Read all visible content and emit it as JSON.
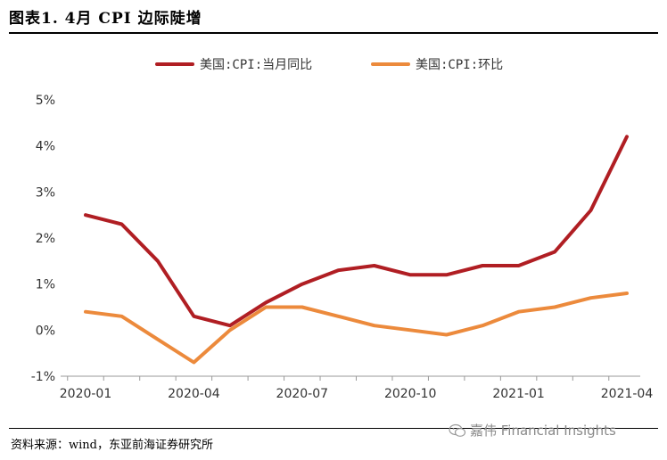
{
  "header": {
    "title": "图表1.   4月 CPI 边际陡增"
  },
  "footer": {
    "source": "资料来源：wind，东亚前海证券研究所",
    "watermark": "嘉伟 Financial Insights",
    "watermark_icon": "wechat-icon"
  },
  "chart_data": {
    "type": "line",
    "x": [
      "2020-01",
      "2020-02",
      "2020-03",
      "2020-04",
      "2020-05",
      "2020-06",
      "2020-07",
      "2020-08",
      "2020-09",
      "2020-10",
      "2020-11",
      "2020-12",
      "2021-01",
      "2021-02",
      "2021-03",
      "2021-04"
    ],
    "x_tick_labels": [
      "2020-01",
      "2020-04",
      "2020-07",
      "2020-10",
      "2021-01",
      "2021-04"
    ],
    "y_tick_labels": [
      "5%",
      "4%",
      "3%",
      "2%",
      "1%",
      "0%",
      "-1%"
    ],
    "ylim": [
      -1,
      5
    ],
    "series": [
      {
        "name": "美国:CPI:当月同比",
        "color": "#b01e23",
        "values": [
          2.5,
          2.3,
          1.5,
          0.3,
          0.1,
          0.6,
          1.0,
          1.3,
          1.4,
          1.2,
          1.2,
          1.4,
          1.4,
          1.7,
          2.6,
          4.2
        ]
      },
      {
        "name": "美国:CPI:环比",
        "color": "#ec8a3c",
        "values": [
          0.4,
          0.3,
          -0.2,
          -0.7,
          0.0,
          0.5,
          0.5,
          0.3,
          0.1,
          0.0,
          -0.1,
          0.1,
          0.4,
          0.5,
          0.7,
          0.8
        ]
      }
    ],
    "legend_position": "top",
    "grid": false
  }
}
